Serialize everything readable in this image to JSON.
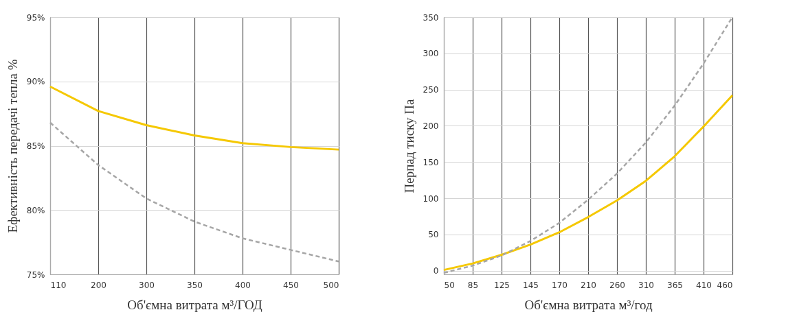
{
  "chart_data": [
    {
      "type": "line",
      "xlabel": "Об'ємна витрата м³/ГОД",
      "ylabel": "Ефективність передачі тепла %",
      "categories": [
        "110",
        "200",
        "300",
        "350",
        "400",
        "450",
        "500"
      ],
      "series": [
        {
          "color": "#f5c800",
          "line_style": "solid",
          "values": [
            89.6,
            87.7,
            86.6,
            85.8,
            85.2,
            84.9,
            84.7
          ]
        },
        {
          "color": "#a6a6a6",
          "line_style": "dashed",
          "values": [
            86.8,
            83.5,
            80.9,
            79.1,
            77.8,
            76.9,
            76.0
          ]
        }
      ],
      "ylim": [
        75,
        95
      ],
      "yticks": [
        {
          "value": 75,
          "label": "75%"
        },
        {
          "value": 80,
          "label": "80%"
        },
        {
          "value": 85,
          "label": "85%"
        },
        {
          "value": 90,
          "label": "90%"
        },
        {
          "value": 95,
          "label": "95%"
        }
      ],
      "grid": true
    },
    {
      "type": "line",
      "xlabel": "Об'ємна витрата м³/год",
      "ylabel": "Перпад тиску Па",
      "categories": [
        "50",
        "85",
        "125",
        "145",
        "170",
        "210",
        "260",
        "310",
        "365",
        "410",
        "460"
      ],
      "series": [
        {
          "color": "#f5c800",
          "line_style": "solid",
          "values": [
            1,
            10,
            22,
            36,
            53,
            74,
            97,
            124,
            158,
            199,
            242
          ]
        },
        {
          "color": "#a6a6a6",
          "line_style": "dashed",
          "values": [
            -3,
            7,
            21,
            41,
            66,
            98,
            134,
            177,
            228,
            286,
            350
          ]
        }
      ],
      "ylim": [
        -5,
        350
      ],
      "yticks": [
        0,
        50,
        100,
        150,
        200,
        250,
        300,
        350
      ],
      "grid": true
    }
  ]
}
